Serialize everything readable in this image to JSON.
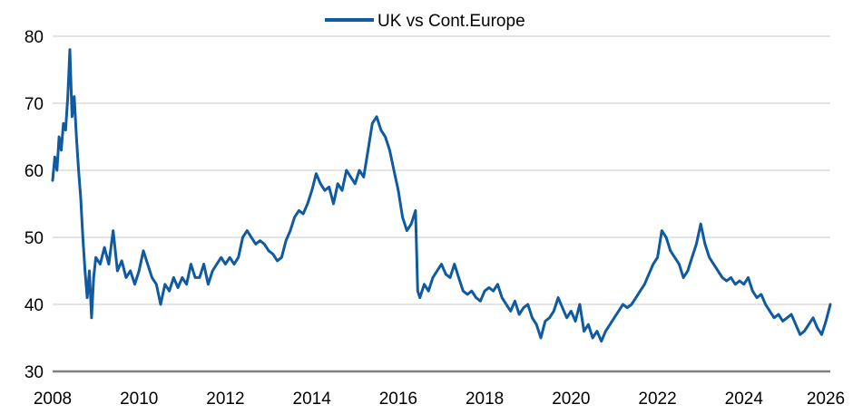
{
  "chart_data": {
    "type": "line",
    "title": "",
    "xlabel": "",
    "ylabel": "",
    "legend": {
      "placement": "top-center"
    },
    "grid": {
      "horizontal": true,
      "vertical": false
    },
    "colors": {
      "series": "#0f5aa0",
      "grid": "#c8c8c8",
      "axis": "#7f7f7f"
    },
    "xlim": [
      2008,
      2026
    ],
    "ylim": [
      30,
      80
    ],
    "xticks": [
      "2008",
      "2010",
      "2012",
      "2014",
      "2016",
      "2018",
      "2020",
      "2022",
      "2024",
      "2026"
    ],
    "yticks": [
      "30",
      "40",
      "50",
      "60",
      "70",
      "80"
    ],
    "series": [
      {
        "name": "UK vs Cont.Europe",
        "points": [
          [
            2008.0,
            58.5
          ],
          [
            2008.05,
            62.0
          ],
          [
            2008.1,
            60.0
          ],
          [
            2008.15,
            65.0
          ],
          [
            2008.2,
            63.0
          ],
          [
            2008.25,
            67.0
          ],
          [
            2008.3,
            66.0
          ],
          [
            2008.35,
            71.0
          ],
          [
            2008.4,
            78.0
          ],
          [
            2008.45,
            68.0
          ],
          [
            2008.5,
            71.0
          ],
          [
            2008.55,
            65.0
          ],
          [
            2008.6,
            60.0
          ],
          [
            2008.65,
            56.0
          ],
          [
            2008.7,
            50.0
          ],
          [
            2008.75,
            45.0
          ],
          [
            2008.8,
            41.0
          ],
          [
            2008.85,
            45.0
          ],
          [
            2008.9,
            38.0
          ],
          [
            2008.95,
            44.0
          ],
          [
            2009.0,
            47.0
          ],
          [
            2009.1,
            46.0
          ],
          [
            2009.2,
            48.5
          ],
          [
            2009.3,
            46.0
          ],
          [
            2009.4,
            51.0
          ],
          [
            2009.5,
            45.0
          ],
          [
            2009.6,
            46.5
          ],
          [
            2009.7,
            44.0
          ],
          [
            2009.8,
            45.0
          ],
          [
            2009.9,
            43.0
          ],
          [
            2010.0,
            45.0
          ],
          [
            2010.1,
            48.0
          ],
          [
            2010.2,
            46.0
          ],
          [
            2010.3,
            44.0
          ],
          [
            2010.4,
            43.0
          ],
          [
            2010.5,
            40.0
          ],
          [
            2010.6,
            43.0
          ],
          [
            2010.7,
            42.0
          ],
          [
            2010.8,
            44.0
          ],
          [
            2010.9,
            42.5
          ],
          [
            2011.0,
            44.0
          ],
          [
            2011.1,
            43.0
          ],
          [
            2011.2,
            46.0
          ],
          [
            2011.3,
            44.0
          ],
          [
            2011.4,
            44.0
          ],
          [
            2011.5,
            46.0
          ],
          [
            2011.6,
            43.0
          ],
          [
            2011.7,
            45.0
          ],
          [
            2011.8,
            46.0
          ],
          [
            2011.9,
            47.0
          ],
          [
            2012.0,
            46.0
          ],
          [
            2012.1,
            47.0
          ],
          [
            2012.2,
            46.0
          ],
          [
            2012.3,
            47.0
          ],
          [
            2012.4,
            50.0
          ],
          [
            2012.5,
            51.0
          ],
          [
            2012.6,
            50.0
          ],
          [
            2012.7,
            49.0
          ],
          [
            2012.8,
            49.5
          ],
          [
            2012.9,
            49.0
          ],
          [
            2013.0,
            48.0
          ],
          [
            2013.1,
            47.5
          ],
          [
            2013.2,
            46.5
          ],
          [
            2013.3,
            47.0
          ],
          [
            2013.4,
            49.5
          ],
          [
            2013.5,
            51.0
          ],
          [
            2013.6,
            53.0
          ],
          [
            2013.7,
            54.0
          ],
          [
            2013.8,
            53.5
          ],
          [
            2013.9,
            55.0
          ],
          [
            2014.0,
            57.0
          ],
          [
            2014.1,
            59.5
          ],
          [
            2014.2,
            58.0
          ],
          [
            2014.3,
            57.0
          ],
          [
            2014.4,
            57.5
          ],
          [
            2014.5,
            55.0
          ],
          [
            2014.6,
            58.0
          ],
          [
            2014.7,
            57.0
          ],
          [
            2014.8,
            60.0
          ],
          [
            2014.9,
            59.0
          ],
          [
            2015.0,
            58.0
          ],
          [
            2015.1,
            60.0
          ],
          [
            2015.2,
            59.0
          ],
          [
            2015.3,
            63.0
          ],
          [
            2015.4,
            67.0
          ],
          [
            2015.5,
            68.0
          ],
          [
            2015.6,
            66.0
          ],
          [
            2015.7,
            65.0
          ],
          [
            2015.8,
            63.0
          ],
          [
            2015.9,
            60.0
          ],
          [
            2016.0,
            57.0
          ],
          [
            2016.1,
            53.0
          ],
          [
            2016.2,
            51.0
          ],
          [
            2016.3,
            52.0
          ],
          [
            2016.4,
            54.0
          ],
          [
            2016.45,
            42.0
          ],
          [
            2016.5,
            41.0
          ],
          [
            2016.6,
            43.0
          ],
          [
            2016.7,
            42.0
          ],
          [
            2016.8,
            44.0
          ],
          [
            2016.9,
            45.0
          ],
          [
            2017.0,
            46.0
          ],
          [
            2017.1,
            44.5
          ],
          [
            2017.2,
            44.0
          ],
          [
            2017.3,
            46.0
          ],
          [
            2017.4,
            44.0
          ],
          [
            2017.5,
            42.0
          ],
          [
            2017.6,
            41.5
          ],
          [
            2017.7,
            42.0
          ],
          [
            2017.8,
            41.0
          ],
          [
            2017.9,
            40.5
          ],
          [
            2018.0,
            42.0
          ],
          [
            2018.1,
            42.5
          ],
          [
            2018.2,
            42.0
          ],
          [
            2018.3,
            43.0
          ],
          [
            2018.4,
            41.0
          ],
          [
            2018.5,
            40.0
          ],
          [
            2018.6,
            39.0
          ],
          [
            2018.7,
            40.5
          ],
          [
            2018.8,
            38.5
          ],
          [
            2018.9,
            39.5
          ],
          [
            2019.0,
            40.0
          ],
          [
            2019.1,
            38.0
          ],
          [
            2019.2,
            37.0
          ],
          [
            2019.3,
            35.0
          ],
          [
            2019.4,
            37.5
          ],
          [
            2019.5,
            38.0
          ],
          [
            2019.6,
            39.0
          ],
          [
            2019.7,
            41.0
          ],
          [
            2019.8,
            39.5
          ],
          [
            2019.9,
            38.0
          ],
          [
            2020.0,
            39.0
          ],
          [
            2020.1,
            37.5
          ],
          [
            2020.2,
            40.0
          ],
          [
            2020.3,
            36.0
          ],
          [
            2020.4,
            37.0
          ],
          [
            2020.5,
            35.0
          ],
          [
            2020.6,
            36.0
          ],
          [
            2020.7,
            34.5
          ],
          [
            2020.8,
            36.0
          ],
          [
            2020.9,
            37.0
          ],
          [
            2021.0,
            38.0
          ],
          [
            2021.1,
            39.0
          ],
          [
            2021.2,
            40.0
          ],
          [
            2021.3,
            39.5
          ],
          [
            2021.4,
            40.0
          ],
          [
            2021.5,
            41.0
          ],
          [
            2021.6,
            42.0
          ],
          [
            2021.7,
            43.0
          ],
          [
            2021.8,
            44.5
          ],
          [
            2021.9,
            46.0
          ],
          [
            2022.0,
            47.0
          ],
          [
            2022.1,
            51.0
          ],
          [
            2022.2,
            50.0
          ],
          [
            2022.3,
            48.0
          ],
          [
            2022.4,
            47.0
          ],
          [
            2022.5,
            46.0
          ],
          [
            2022.6,
            44.0
          ],
          [
            2022.7,
            45.0
          ],
          [
            2022.8,
            47.0
          ],
          [
            2022.9,
            49.0
          ],
          [
            2023.0,
            52.0
          ],
          [
            2023.1,
            49.0
          ],
          [
            2023.2,
            47.0
          ],
          [
            2023.3,
            46.0
          ],
          [
            2023.4,
            45.0
          ],
          [
            2023.5,
            44.0
          ],
          [
            2023.6,
            43.5
          ],
          [
            2023.7,
            44.0
          ],
          [
            2023.8,
            43.0
          ],
          [
            2023.9,
            43.5
          ],
          [
            2024.0,
            43.0
          ],
          [
            2024.1,
            44.0
          ],
          [
            2024.2,
            42.0
          ],
          [
            2024.3,
            41.0
          ],
          [
            2024.4,
            41.5
          ],
          [
            2024.5,
            40.0
          ],
          [
            2024.6,
            39.0
          ],
          [
            2024.7,
            38.0
          ],
          [
            2024.8,
            38.5
          ],
          [
            2024.9,
            37.5
          ],
          [
            2025.0,
            38.0
          ],
          [
            2025.1,
            38.5
          ],
          [
            2025.2,
            37.0
          ],
          [
            2025.3,
            35.5
          ],
          [
            2025.4,
            36.0
          ],
          [
            2025.5,
            37.0
          ],
          [
            2025.6,
            38.0
          ],
          [
            2025.7,
            36.5
          ],
          [
            2025.8,
            35.5
          ],
          [
            2025.9,
            37.5
          ],
          [
            2026.0,
            40.0
          ]
        ]
      }
    ]
  }
}
